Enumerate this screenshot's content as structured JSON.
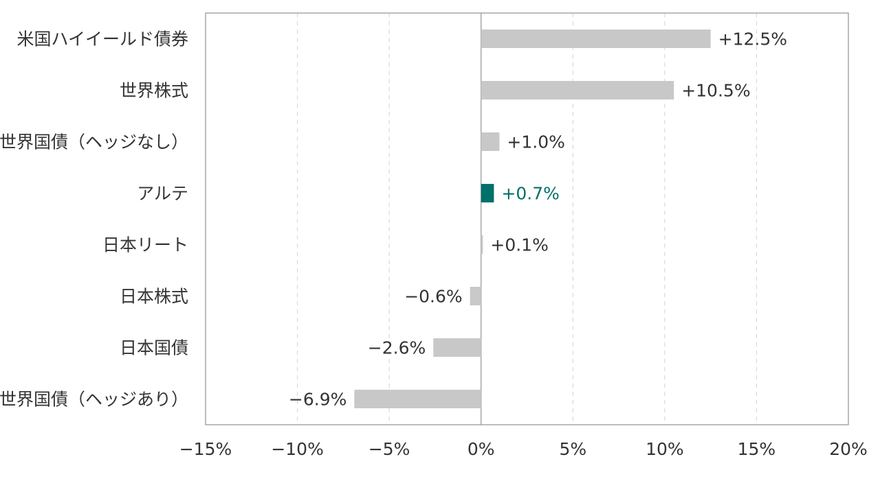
{
  "colors": {
    "default_bar": "#c8c8c8",
    "highlight_bar": "#00706b",
    "highlight_text": "#00706b",
    "text": "#333333"
  },
  "chart_data": {
    "type": "bar",
    "orientation": "horizontal",
    "title": "",
    "xlabel": "",
    "ylabel": "",
    "xlim": [
      -15,
      20
    ],
    "x_ticks": [
      -15,
      -10,
      -5,
      0,
      5,
      10,
      15,
      20
    ],
    "x_tick_labels": [
      "−15%",
      "−10%",
      "−5%",
      "0%",
      "5%",
      "10%",
      "15%",
      "20%"
    ],
    "grid": "vertical dashed",
    "legend": "none",
    "categories": [
      "米国ハイイールド債券",
      "世界株式",
      "世界国債（ヘッジなし）",
      "アルテ",
      "日本リート",
      "日本株式",
      "日本国債",
      "世界国債（ヘッジあり）"
    ],
    "values": [
      12.5,
      10.5,
      1.0,
      0.7,
      0.1,
      -0.6,
      -2.6,
      -6.9
    ],
    "value_labels": [
      "+12.5%",
      "+10.5%",
      "+1.0%",
      "+0.7%",
      "+0.1%",
      "−0.6%",
      "−2.6%",
      "−6.9%"
    ],
    "highlight_index": 3
  }
}
